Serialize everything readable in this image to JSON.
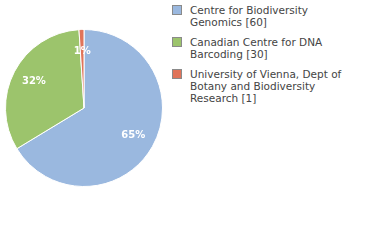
{
  "chart_data": {
    "type": "pie",
    "categories": [
      "Centre for Biodiversity Genomics [60]",
      "Canadian Centre for DNA Barcoding [30]",
      "University of Vienna, Dept of Botany and Biodiversity Research [1]"
    ],
    "values": [
      65,
      32,
      1
    ],
    "value_labels": [
      "65%",
      "32%",
      "1%"
    ],
    "data_labels": true,
    "colors": [
      "#9ab8df",
      "#9cc46c",
      "#e0745a"
    ],
    "legend": "right"
  }
}
